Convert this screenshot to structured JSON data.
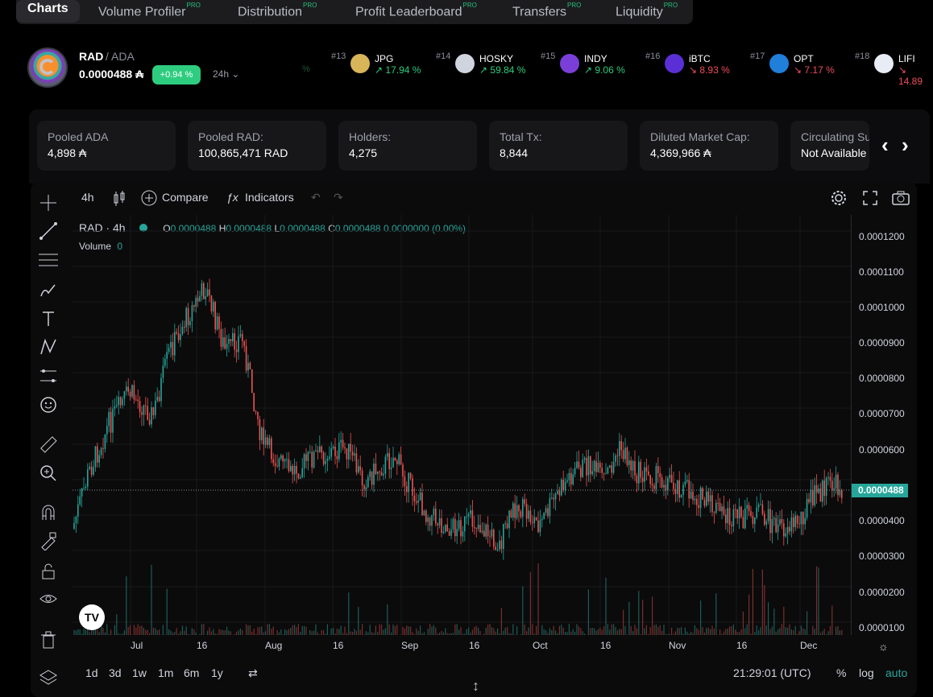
{
  "tabs": [
    {
      "label": "Charts",
      "pro": ""
    },
    {
      "label": "Volume Profiler",
      "pro": "PRO"
    },
    {
      "label": "Distribution",
      "pro": "PRO"
    },
    {
      "label": "Profit Leaderboard",
      "pro": "PRO"
    },
    {
      "label": "Transfers",
      "pro": "PRO"
    },
    {
      "label": "Liquidity",
      "pro": "PRO"
    }
  ],
  "token": {
    "symbol": "RAD",
    "pair": "/ ADA",
    "price": "0.0000488 ₳",
    "change": "+0.94 %",
    "timeframe": "24h ⌄",
    "faint": "%"
  },
  "ranks": [
    {
      "rank": "#13",
      "name": "JPG",
      "change": "↗ 17.94 %",
      "dir": "up",
      "icon": "jpg-icon",
      "color": "#d9b55a"
    },
    {
      "rank": "#14",
      "name": "HOSKY",
      "change": "↗ 59.84 %",
      "dir": "up",
      "icon": "hosky-dog-icon",
      "color": "#cfd4de"
    },
    {
      "rank": "#15",
      "name": "INDY",
      "change": "↗ 9.06 %",
      "dir": "up",
      "icon": "indy-eye-icon",
      "color": "#7b3fd9"
    },
    {
      "rank": "#16",
      "name": "iBTC",
      "change": "↘ 8.93 %",
      "dir": "down",
      "icon": "bitcoin-icon",
      "color": "#5b2fd6"
    },
    {
      "rank": "#17",
      "name": "OPT",
      "change": "↘ 7.17 %",
      "dir": "down",
      "icon": "opt-wave-icon",
      "color": "#1f7fd9"
    },
    {
      "rank": "#18",
      "name": "LIFI",
      "change": "↘ 14.89",
      "dir": "down",
      "icon": "lifi-anchor-icon",
      "color": "#e8ecf5"
    }
  ],
  "stats": [
    {
      "label": "Pooled ADA",
      "value": "4,898 ₳"
    },
    {
      "label": "Pooled RAD:",
      "value": "100,865,471 RAD"
    },
    {
      "label": "Holders:",
      "value": "4,275"
    },
    {
      "label": "Total Tx:",
      "value": "8,844"
    },
    {
      "label": "Diluted Market Cap:",
      "value": "4,369,966 ₳"
    },
    {
      "label": "Circulating Supply:",
      "value": "Not Available"
    }
  ],
  "toolbar": {
    "interval": "4h",
    "compare": "Compare",
    "indicators": "Indicators"
  },
  "legend": {
    "symbol": "RAD · 4h",
    "o_label": "O",
    "o": "0.0000488",
    "h_label": "H",
    "h": "0.0000488",
    "l_label": "L",
    "l": "0.0000488",
    "c_label": "C",
    "c": "0.0000488",
    "chg": "0.0000000 (0.00%)",
    "volume_label": "Volume",
    "volume": "0"
  },
  "y_ticks": [
    "0.0001200",
    "0.0001100",
    "0.0001000",
    "0.0000900",
    "0.0000800",
    "0.0000700",
    "0.0000600",
    "0.0000400",
    "0.0000300",
    "0.0000200",
    "0.0000100"
  ],
  "x_ticks": [
    "Jul",
    "16",
    "Aug",
    "16",
    "Sep",
    "16",
    "Oct",
    "16",
    "Nov",
    "16",
    "Dec"
  ],
  "last_price": "0.0000488",
  "bottom": {
    "ranges": [
      "1d",
      "3d",
      "1w",
      "1m",
      "6m",
      "1y"
    ],
    "time": "21:29:01 (UTC)",
    "percent": "%",
    "log": "log",
    "auto": "auto"
  },
  "colors": {
    "up": "#26a69a",
    "down": "#ef5350",
    "accent": "#2ecc7f"
  }
}
